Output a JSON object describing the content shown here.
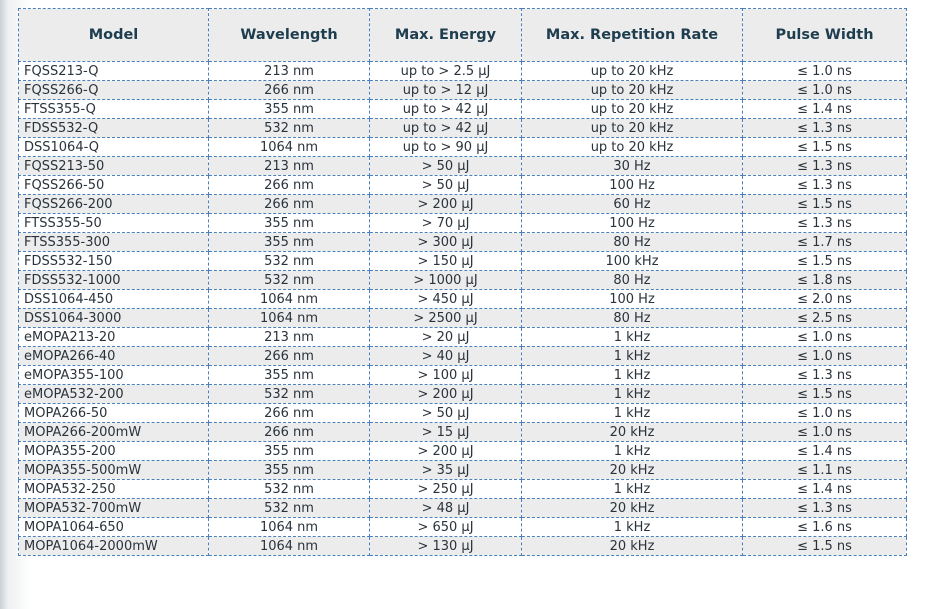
{
  "colors": {
    "border": "#4a80bd",
    "header_background": "#ececec",
    "row_stripe_background": "#ececec",
    "header_text": "#1e3d4e",
    "body_text": "#2a333c"
  },
  "table": {
    "columns": [
      "Model",
      "Wavelength",
      "Max. Energy",
      "Max. Repetition Rate",
      "Pulse Width"
    ],
    "rows": [
      {
        "model": "FQSS213-Q",
        "wavelength": "213 nm",
        "max_energy": "up to > 2.5 µJ",
        "max_repetition_rate": "up to 20 kHz",
        "pulse_width": "≤ 1.0 ns"
      },
      {
        "model": "FQSS266-Q",
        "wavelength": "266 nm",
        "max_energy": "up to > 12 µJ",
        "max_repetition_rate": "up to 20 kHz",
        "pulse_width": "≤ 1.0 ns"
      },
      {
        "model": "FTSS355-Q",
        "wavelength": "355 nm",
        "max_energy": "up to > 42 µJ",
        "max_repetition_rate": "up to 20 kHz",
        "pulse_width": "≤ 1.4 ns"
      },
      {
        "model": "FDSS532-Q",
        "wavelength": "532 nm",
        "max_energy": "up to > 42 µJ",
        "max_repetition_rate": "up to 20 kHz",
        "pulse_width": "≤ 1.3 ns"
      },
      {
        "model": "DSS1064-Q",
        "wavelength": "1064 nm",
        "max_energy": "up to > 90 µJ",
        "max_repetition_rate": "up to 20 kHz",
        "pulse_width": "≤ 1.5 ns"
      },
      {
        "model": "FQSS213-50",
        "wavelength": "213 nm",
        "max_energy": "> 50 µJ",
        "max_repetition_rate": "30 Hz",
        "pulse_width": "≤ 1.3 ns"
      },
      {
        "model": "FQSS266-50",
        "wavelength": "266 nm",
        "max_energy": "> 50 µJ",
        "max_repetition_rate": "100 Hz",
        "pulse_width": "≤ 1.3 ns"
      },
      {
        "model": "FQSS266-200",
        "wavelength": "266 nm",
        "max_energy": "> 200 µJ",
        "max_repetition_rate": "60 Hz",
        "pulse_width": "≤ 1.5 ns"
      },
      {
        "model": "FTSS355-50",
        "wavelength": "355 nm",
        "max_energy": "> 70 µJ",
        "max_repetition_rate": "100 Hz",
        "pulse_width": "≤ 1.3 ns"
      },
      {
        "model": "FTSS355-300",
        "wavelength": "355 nm",
        "max_energy": "> 300 µJ",
        "max_repetition_rate": "80 Hz",
        "pulse_width": "≤ 1.7 ns"
      },
      {
        "model": "FDSS532-150",
        "wavelength": "532 nm",
        "max_energy": "> 150 µJ",
        "max_repetition_rate": "100 kHz",
        "pulse_width": "≤ 1.5 ns"
      },
      {
        "model": "FDSS532-1000",
        "wavelength": "532 nm",
        "max_energy": "> 1000 µJ",
        "max_repetition_rate": "80 Hz",
        "pulse_width": "≤ 1.8 ns"
      },
      {
        "model": "DSS1064-450",
        "wavelength": "1064 nm",
        "max_energy": "> 450 µJ",
        "max_repetition_rate": "100 Hz",
        "pulse_width": "≤ 2.0 ns"
      },
      {
        "model": "DSS1064-3000",
        "wavelength": "1064 nm",
        "max_energy": "> 2500 µJ",
        "max_repetition_rate": "80 Hz",
        "pulse_width": "≤ 2.5 ns"
      },
      {
        "model": "eMOPA213-20",
        "wavelength": "213 nm",
        "max_energy": "> 20 µJ",
        "max_repetition_rate": "1 kHz",
        "pulse_width": "≤ 1.0 ns"
      },
      {
        "model": "eMOPA266-40",
        "wavelength": "266 nm",
        "max_energy": "> 40 µJ",
        "max_repetition_rate": "1 kHz",
        "pulse_width": "≤ 1.0 ns"
      },
      {
        "model": "eMOPA355-100",
        "wavelength": "355 nm",
        "max_energy": "> 100 µJ",
        "max_repetition_rate": "1 kHz",
        "pulse_width": "≤ 1.3 ns"
      },
      {
        "model": "eMOPA532-200",
        "wavelength": "532 nm",
        "max_energy": "> 200 µJ",
        "max_repetition_rate": "1 kHz",
        "pulse_width": "≤ 1.5 ns"
      },
      {
        "model": "MOPA266-50",
        "wavelength": "266 nm",
        "max_energy": "> 50 µJ",
        "max_repetition_rate": "1 kHz",
        "pulse_width": "≤ 1.0 ns"
      },
      {
        "model": "MOPA266-200mW",
        "wavelength": "266 nm",
        "max_energy": "> 15 µJ",
        "max_repetition_rate": "20 kHz",
        "pulse_width": "≤ 1.0 ns"
      },
      {
        "model": "MOPA355-200",
        "wavelength": "355 nm",
        "max_energy": "> 200 µJ",
        "max_repetition_rate": "1 kHz",
        "pulse_width": "≤ 1.4 ns"
      },
      {
        "model": "MOPA355-500mW",
        "wavelength": "355 nm",
        "max_energy": "> 35 µJ",
        "max_repetition_rate": "20 kHz",
        "pulse_width": "≤ 1.1 ns"
      },
      {
        "model": "MOPA532-250",
        "wavelength": "532 nm",
        "max_energy": "> 250 µJ",
        "max_repetition_rate": "1 kHz",
        "pulse_width": "≤ 1.4 ns"
      },
      {
        "model": "MOPA532-700mW",
        "wavelength": "532 nm",
        "max_energy": "> 48 µJ",
        "max_repetition_rate": "20 kHz",
        "pulse_width": "≤ 1.3 ns"
      },
      {
        "model": "MOPA1064-650",
        "wavelength": "1064 nm",
        "max_energy": "> 650 µJ",
        "max_repetition_rate": "1 kHz",
        "pulse_width": "≤ 1.6 ns"
      },
      {
        "model": "MOPA1064-2000mW",
        "wavelength": "1064 nm",
        "max_energy": "> 130 µJ",
        "max_repetition_rate": "20 kHz",
        "pulse_width": "≤ 1.5 ns"
      }
    ]
  }
}
